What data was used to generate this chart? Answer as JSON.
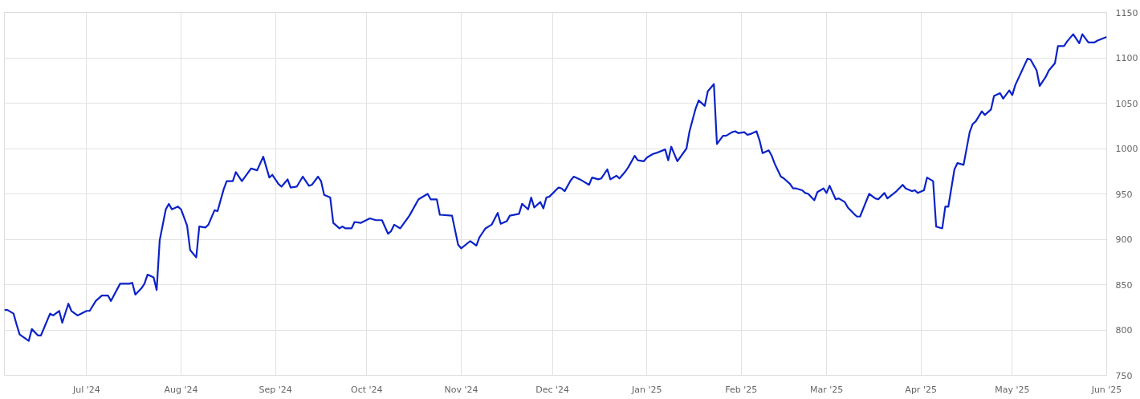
{
  "chart_data": {
    "type": "line",
    "x": [
      "2024-06-04",
      "2024-06-05",
      "2024-06-07",
      "2024-06-08",
      "2024-06-09",
      "2024-06-12",
      "2024-06-13",
      "2024-06-15",
      "2024-06-16",
      "2024-06-19",
      "2024-06-20",
      "2024-06-22",
      "2024-06-23",
      "2024-06-25",
      "2024-06-26",
      "2024-06-28",
      "2024-07-01",
      "2024-07-02",
      "2024-07-04",
      "2024-07-06",
      "2024-07-08",
      "2024-07-09",
      "2024-07-12",
      "2024-07-15",
      "2024-07-16",
      "2024-07-17",
      "2024-07-19",
      "2024-07-20",
      "2024-07-21",
      "2024-07-23",
      "2024-07-24",
      "2024-07-25",
      "2024-07-27",
      "2024-07-28",
      "2024-07-29",
      "2024-07-31",
      "2024-08-01",
      "2024-08-03",
      "2024-08-04",
      "2024-08-06",
      "2024-08-07",
      "2024-08-09",
      "2024-08-10",
      "2024-08-12",
      "2024-08-13",
      "2024-08-15",
      "2024-08-16",
      "2024-08-18",
      "2024-08-19",
      "2024-08-21",
      "2024-08-24",
      "2024-08-26",
      "2024-08-28",
      "2024-08-30",
      "2024-08-31",
      "2024-09-02",
      "2024-09-03",
      "2024-09-05",
      "2024-09-06",
      "2024-09-08",
      "2024-09-10",
      "2024-09-12",
      "2024-09-13",
      "2024-09-15",
      "2024-09-16",
      "2024-09-17",
      "2024-09-19",
      "2024-09-20",
      "2024-09-22",
      "2024-09-23",
      "2024-09-24",
      "2024-09-26",
      "2024-09-27",
      "2024-09-29",
      "2024-10-02",
      "2024-10-04",
      "2024-10-06",
      "2024-10-08",
      "2024-10-09",
      "2024-10-10",
      "2024-10-12",
      "2024-10-15",
      "2024-10-18",
      "2024-10-21",
      "2024-10-22",
      "2024-10-24",
      "2024-10-25",
      "2024-10-29",
      "2024-10-31",
      "2024-11-01",
      "2024-11-04",
      "2024-11-06",
      "2024-11-07",
      "2024-11-09",
      "2024-11-11",
      "2024-11-13",
      "2024-11-14",
      "2024-11-16",
      "2024-11-17",
      "2024-11-20",
      "2024-11-21",
      "2024-11-23",
      "2024-11-24",
      "2024-11-25",
      "2024-11-27",
      "2024-11-28",
      "2024-11-29",
      "2024-11-30",
      "2024-12-03",
      "2024-12-04",
      "2024-12-05",
      "2024-12-07",
      "2024-12-08",
      "2024-12-10",
      "2024-12-11",
      "2024-12-13",
      "2024-12-14",
      "2024-12-16",
      "2024-12-17",
      "2024-12-19",
      "2024-12-20",
      "2024-12-22",
      "2024-12-23",
      "2024-12-25",
      "2024-12-26",
      "2024-12-28",
      "2024-12-29",
      "2024-12-31",
      "2025-01-01",
      "2025-01-03",
      "2025-01-04",
      "2025-01-07",
      "2025-01-08",
      "2025-01-09",
      "2025-01-11",
      "2025-01-14",
      "2025-01-15",
      "2025-01-17",
      "2025-01-18",
      "2025-01-20",
      "2025-01-21",
      "2025-01-23",
      "2025-01-24",
      "2025-01-26",
      "2025-01-27",
      "2025-01-29",
      "2025-01-30",
      "2025-01-31",
      "2025-02-02",
      "2025-02-03",
      "2025-02-04",
      "2025-02-06",
      "2025-02-07",
      "2025-02-08",
      "2025-02-10",
      "2025-02-11",
      "2025-02-12",
      "2025-02-14",
      "2025-02-15",
      "2025-02-17",
      "2025-02-18",
      "2025-02-19",
      "2025-02-21",
      "2025-02-22",
      "2025-02-23",
      "2025-02-25",
      "2025-02-26",
      "2025-02-28",
      "2025-03-01",
      "2025-03-02",
      "2025-03-04",
      "2025-03-05",
      "2025-03-07",
      "2025-03-08",
      "2025-03-10",
      "2025-03-11",
      "2025-03-12",
      "2025-03-15",
      "2025-03-17",
      "2025-03-18",
      "2025-03-20",
      "2025-03-21",
      "2025-03-24",
      "2025-03-26",
      "2025-03-27",
      "2025-03-29",
      "2025-03-30",
      "2025-03-31",
      "2025-04-02",
      "2025-04-03",
      "2025-04-05",
      "2025-04-06",
      "2025-04-08",
      "2025-04-09",
      "2025-04-10",
      "2025-04-12",
      "2025-04-13",
      "2025-04-15",
      "2025-04-17",
      "2025-04-18",
      "2025-04-19",
      "2025-04-21",
      "2025-04-22",
      "2025-04-24",
      "2025-04-25",
      "2025-04-27",
      "2025-04-28",
      "2025-04-30",
      "2025-05-01",
      "2025-05-02",
      "2025-05-06",
      "2025-05-07",
      "2025-05-09",
      "2025-05-10",
      "2025-05-12",
      "2025-05-13",
      "2025-05-15",
      "2025-05-16",
      "2025-05-18",
      "2025-05-19",
      "2025-05-21",
      "2025-05-23",
      "2025-05-24",
      "2025-05-26",
      "2025-05-28",
      "2025-05-29",
      "2025-06-01"
    ],
    "series": [
      {
        "color": "#0b22c8",
        "values": [
          822,
          822,
          818,
          806,
          795,
          788,
          801,
          794,
          794,
          818,
          816,
          821,
          808,
          829,
          821,
          816,
          821,
          821,
          832,
          838,
          838,
          832,
          851,
          851,
          852,
          839,
          846,
          851,
          861,
          858,
          844,
          899,
          933,
          939,
          933,
          936,
          933,
          915,
          888,
          880,
          914,
          913,
          916,
          932,
          931,
          955,
          964,
          964,
          974,
          964,
          978,
          976,
          991,
          968,
          971,
          961,
          958,
          966,
          957,
          958,
          969,
          959,
          960,
          969,
          964,
          949,
          946,
          918,
          912,
          914,
          912,
          912,
          919,
          918,
          923,
          921,
          921,
          906,
          909,
          916,
          912,
          926,
          944,
          950,
          944,
          944,
          927,
          926,
          894,
          890,
          898,
          893,
          902,
          912,
          916,
          929,
          917,
          920,
          926,
          928,
          939,
          933,
          946,
          935,
          941,
          934,
          946,
          947,
          957,
          956,
          953,
          965,
          969,
          966,
          964,
          960,
          968,
          966,
          967,
          977,
          966,
          970,
          967,
          975,
          980,
          992,
          987,
          986,
          990,
          994,
          995,
          999,
          987,
          1002,
          986,
          1000,
          1019,
          1044,
          1053,
          1047,
          1063,
          1071,
          1005,
          1014,
          1014,
          1018,
          1019,
          1017,
          1018,
          1015,
          1016,
          1019,
          1009,
          995,
          998,
          992,
          983,
          969,
          967,
          961,
          956,
          956,
          954,
          951,
          950,
          943,
          952,
          956,
          951,
          959,
          944,
          945,
          941,
          935,
          928,
          925,
          925,
          950,
          945,
          944,
          951,
          945,
          953,
          960,
          956,
          953,
          954,
          951,
          954,
          968,
          964,
          914,
          912,
          936,
          936,
          977,
          984,
          982,
          1018,
          1027,
          1030,
          1041,
          1037,
          1043,
          1058,
          1061,
          1055,
          1064,
          1059,
          1070,
          1099,
          1098,
          1086,
          1069,
          1079,
          1086,
          1094,
          1113,
          1113,
          1118,
          1126,
          1116,
          1126,
          1117,
          1117,
          1119,
          1123
        ]
      }
    ],
    "xlim": [
      "2024-06-04",
      "2025-06-01"
    ],
    "xticks": [
      {
        "value": "2024-07-01",
        "label": "Jul '24"
      },
      {
        "value": "2024-08-01",
        "label": "Aug '24"
      },
      {
        "value": "2024-09-01",
        "label": "Sep '24"
      },
      {
        "value": "2024-10-01",
        "label": "Oct '24"
      },
      {
        "value": "2024-11-01",
        "label": "Nov '24"
      },
      {
        "value": "2024-12-01",
        "label": "Dec '24"
      },
      {
        "value": "2025-01-01",
        "label": "Jan '25"
      },
      {
        "value": "2025-02-01",
        "label": "Feb '25"
      },
      {
        "value": "2025-03-01",
        "label": "Mar '25"
      },
      {
        "value": "2025-04-01",
        "label": "Apr '25"
      },
      {
        "value": "2025-05-01",
        "label": "May '25"
      },
      {
        "value": "2025-06-01",
        "label": "Jun '25"
      }
    ],
    "ylim": [
      750,
      1150
    ],
    "yticks": [
      750,
      800,
      850,
      900,
      950,
      1000,
      1050,
      1100,
      1150
    ],
    "grid": true,
    "line_style": "solid"
  }
}
